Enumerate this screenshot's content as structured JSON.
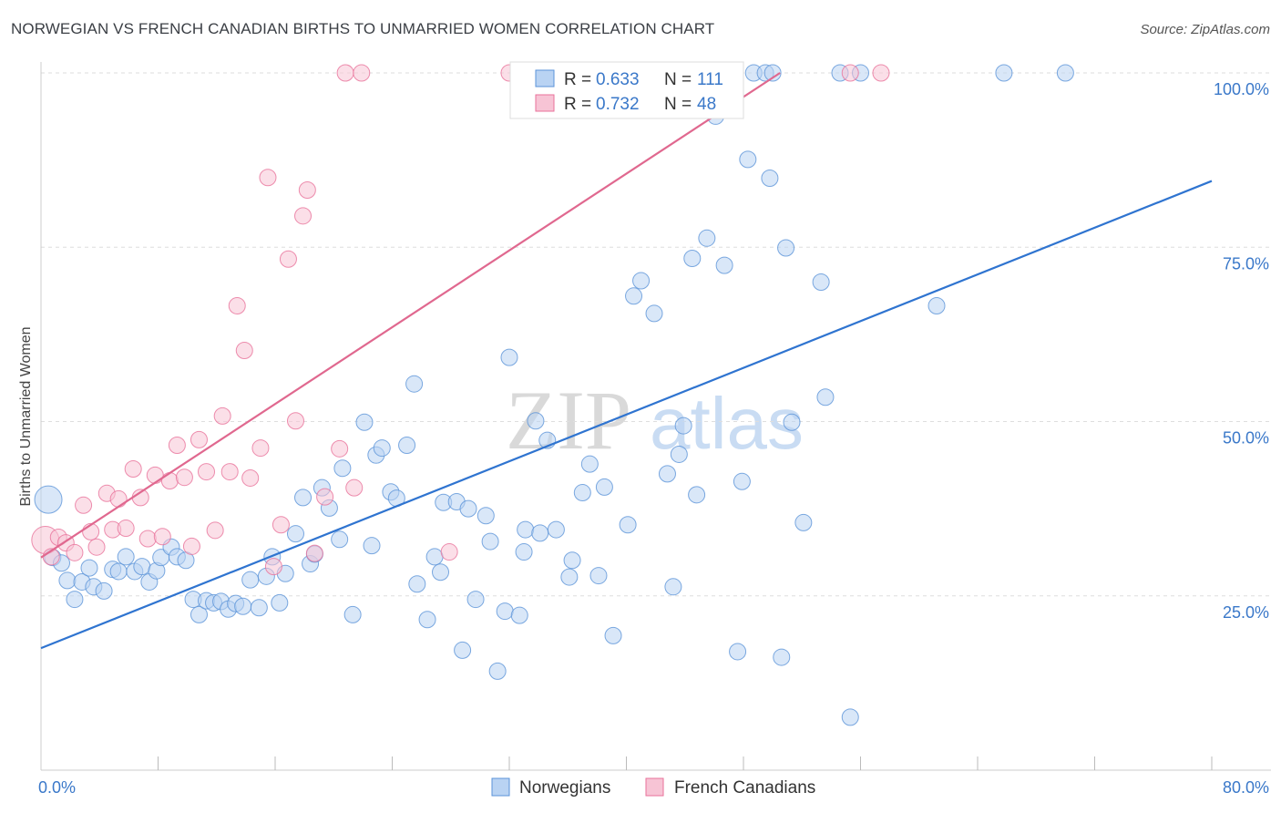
{
  "title": "NORWEGIAN VS FRENCH CANADIAN BIRTHS TO UNMARRIED WOMEN CORRELATION CHART",
  "source": "Source: ZipAtlas.com",
  "colors": {
    "norwegians": "#5b93d8",
    "norwegians_fill": "#b9d3f3",
    "french": "#e8729a",
    "french_fill": "#f7c4d5",
    "accent_text": "#3a78c9"
  },
  "chart_data": {
    "type": "scatter",
    "xlim": [
      0,
      80
    ],
    "ylim": [
      0,
      100
    ],
    "xlabel": "",
    "ylabel": "Births to Unmarried Women",
    "x_tick_labels": [
      {
        "value": 0,
        "label": "0.0%"
      },
      {
        "value": 80,
        "label": "80.0%"
      }
    ],
    "y_tick_labels": [
      {
        "value": 25,
        "label": "25.0%"
      },
      {
        "value": 50,
        "label": "50.0%"
      },
      {
        "value": 75,
        "label": "75.0%"
      },
      {
        "value": 100,
        "label": "100.0%"
      }
    ],
    "grid": "horizontal dashed",
    "legend_top": [
      {
        "r_label": "R = ",
        "r": "0.633",
        "n_label": "N = ",
        "n": "111"
      },
      {
        "r_label": "R = ",
        "r": "0.732",
        "n_label": "N = ",
        "n": "48"
      }
    ],
    "series": [
      {
        "name": "Norwegians",
        "color": "#5b93d8",
        "trend": [
          [
            0,
            17.5
          ],
          [
            80,
            84.5
          ]
        ],
        "points": [
          [
            0.5,
            38.8
          ],
          [
            0.8,
            30.5
          ],
          [
            1.4,
            29.7
          ],
          [
            1.8,
            27.2
          ],
          [
            2.3,
            24.5
          ],
          [
            2.8,
            27
          ],
          [
            3.3,
            29
          ],
          [
            3.6,
            26.3
          ],
          [
            4.3,
            25.7
          ],
          [
            4.9,
            28.8
          ],
          [
            5.3,
            28.5
          ],
          [
            5.8,
            30.6
          ],
          [
            6.4,
            28.5
          ],
          [
            6.9,
            29.2
          ],
          [
            7.4,
            27
          ],
          [
            7.9,
            28.6
          ],
          [
            8.2,
            30.5
          ],
          [
            8.9,
            32
          ],
          [
            9.3,
            30.6
          ],
          [
            9.9,
            30.1
          ],
          [
            10.4,
            24.5
          ],
          [
            10.8,
            22.3
          ],
          [
            11.3,
            24.3
          ],
          [
            11.8,
            24
          ],
          [
            12.3,
            24.2
          ],
          [
            12.8,
            23.1
          ],
          [
            13.3,
            23.9
          ],
          [
            13.8,
            23.5
          ],
          [
            14.3,
            27.3
          ],
          [
            14.9,
            23.3
          ],
          [
            15.4,
            27.8
          ],
          [
            15.8,
            30.6
          ],
          [
            16.3,
            24
          ],
          [
            16.7,
            28.2
          ],
          [
            17.4,
            33.9
          ],
          [
            17.9,
            39.1
          ],
          [
            18.4,
            29.6
          ],
          [
            18.7,
            31
          ],
          [
            19.2,
            40.5
          ],
          [
            19.7,
            37.6
          ],
          [
            20.4,
            33.1
          ],
          [
            20.6,
            43.3
          ],
          [
            21.3,
            22.3
          ],
          [
            22.1,
            49.9
          ],
          [
            22.6,
            32.2
          ],
          [
            22.9,
            45.2
          ],
          [
            23.3,
            46.2
          ],
          [
            23.9,
            39.9
          ],
          [
            24.3,
            39
          ],
          [
            25.0,
            46.6
          ],
          [
            25.5,
            55.4
          ],
          [
            25.7,
            26.7
          ],
          [
            26.4,
            21.6
          ],
          [
            26.9,
            30.6
          ],
          [
            27.3,
            28.4
          ],
          [
            27.5,
            38.4
          ],
          [
            28.4,
            38.5
          ],
          [
            28.8,
            17.2
          ],
          [
            29.2,
            37.5
          ],
          [
            29.7,
            24.5
          ],
          [
            30.4,
            36.5
          ],
          [
            30.7,
            32.8
          ],
          [
            31.2,
            14.2
          ],
          [
            31.7,
            22.8
          ],
          [
            32.0,
            59.2
          ],
          [
            32.7,
            22.2
          ],
          [
            33.0,
            31.3
          ],
          [
            33.1,
            34.5
          ],
          [
            33.8,
            50.1
          ],
          [
            34.1,
            34
          ],
          [
            34.6,
            47.3
          ],
          [
            35.2,
            34.5
          ],
          [
            36.1,
            27.7
          ],
          [
            36.3,
            30.1
          ],
          [
            37.0,
            39.8
          ],
          [
            37.5,
            43.9
          ],
          [
            38.1,
            27.9
          ],
          [
            38.5,
            40.6
          ],
          [
            39.1,
            19.3
          ],
          [
            40.1,
            35.2
          ],
          [
            40.5,
            68
          ],
          [
            41.0,
            70.2
          ],
          [
            41.9,
            65.5
          ],
          [
            42.8,
            42.5
          ],
          [
            43.2,
            26.3
          ],
          [
            43.6,
            45.3
          ],
          [
            43.9,
            49.4
          ],
          [
            44.5,
            73.4
          ],
          [
            44.8,
            39.5
          ],
          [
            45.5,
            76.3
          ],
          [
            46.1,
            93.8
          ],
          [
            46.7,
            72.4
          ],
          [
            47.6,
            17
          ],
          [
            47.9,
            41.4
          ],
          [
            48.3,
            87.6
          ],
          [
            48.7,
            100
          ],
          [
            49.5,
            100
          ],
          [
            49.8,
            84.9
          ],
          [
            50.6,
            16.2
          ],
          [
            50.9,
            74.9
          ],
          [
            51.3,
            49.9
          ],
          [
            52.1,
            35.5
          ],
          [
            53.3,
            70
          ],
          [
            53.6,
            53.5
          ],
          [
            54.6,
            100
          ],
          [
            55.3,
            7.6
          ],
          [
            56.0,
            100
          ],
          [
            61.2,
            66.6
          ],
          [
            65.8,
            100
          ],
          [
            70.0,
            100
          ],
          [
            50.0,
            100
          ]
        ]
      },
      {
        "name": "French Canadians",
        "color": "#e8729a",
        "trend": [
          [
            0,
            30.5
          ],
          [
            50.5,
            100
          ]
        ],
        "points": [
          [
            0.3,
            33
          ],
          [
            0.7,
            30.6
          ],
          [
            1.2,
            33.4
          ],
          [
            1.7,
            32.6
          ],
          [
            2.3,
            31.2
          ],
          [
            2.9,
            38
          ],
          [
            3.4,
            34.2
          ],
          [
            3.8,
            32
          ],
          [
            4.5,
            39.7
          ],
          [
            4.9,
            34.5
          ],
          [
            5.3,
            38.9
          ],
          [
            5.8,
            34.7
          ],
          [
            6.3,
            43.2
          ],
          [
            6.8,
            39.1
          ],
          [
            7.3,
            33.2
          ],
          [
            7.8,
            42.3
          ],
          [
            8.3,
            33.5
          ],
          [
            8.8,
            41.5
          ],
          [
            9.3,
            46.6
          ],
          [
            9.8,
            42
          ],
          [
            10.3,
            32.1
          ],
          [
            10.8,
            47.4
          ],
          [
            11.3,
            42.8
          ],
          [
            11.9,
            34.4
          ],
          [
            12.4,
            50.8
          ],
          [
            12.9,
            42.8
          ],
          [
            13.9,
            60.2
          ],
          [
            13.4,
            66.6
          ],
          [
            14.3,
            41.9
          ],
          [
            15.0,
            46.2
          ],
          [
            15.5,
            85
          ],
          [
            15.9,
            29.2
          ],
          [
            16.4,
            35.2
          ],
          [
            16.9,
            73.3
          ],
          [
            17.4,
            50.1
          ],
          [
            17.9,
            79.5
          ],
          [
            18.2,
            83.2
          ],
          [
            18.7,
            31.1
          ],
          [
            19.4,
            39.2
          ],
          [
            20.4,
            46.1
          ],
          [
            21.4,
            40.5
          ],
          [
            20.8,
            100
          ],
          [
            21.9,
            100
          ],
          [
            27.9,
            31.3
          ],
          [
            32.0,
            100
          ],
          [
            47.0,
            100
          ],
          [
            55.3,
            100
          ],
          [
            57.4,
            100
          ]
        ]
      }
    ]
  },
  "bottom_legend": [
    {
      "label": "Norwegians"
    },
    {
      "label": "French Canadians"
    }
  ],
  "watermark": {
    "part1": "ZIP",
    "part2": "atlas"
  }
}
